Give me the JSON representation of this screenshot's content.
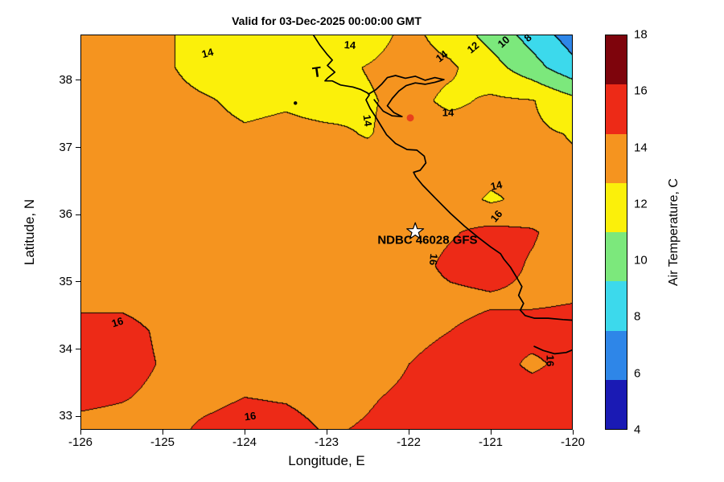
{
  "station": {
    "label": "NDBC 46028 GFS",
    "marker": "white-star",
    "lon": -121.92,
    "lat": 35.75
  },
  "colorbar": {
    "label": "Air Temperature, C",
    "min": 4,
    "max": 18,
    "ticks": [
      18,
      16,
      14,
      12,
      10,
      8,
      6,
      4
    ],
    "band_colors_top_to_bottom": [
      "#7E040C",
      "#ED2A17",
      "#F5941F",
      "#FBF00A",
      "#7CE87C",
      "#3CD9EC",
      "#2E86E8",
      "#1A1AB4"
    ]
  },
  "chart_data": {
    "type": "heatmap",
    "title": "Valid for 03-Dec-2025 00:00:00 GMT",
    "xlabel": "Longitude, E",
    "ylabel": "Latitude, N",
    "units": "C",
    "xlim": [
      -126,
      -120
    ],
    "ylim": [
      32.8,
      38.68
    ],
    "xticks": [
      -126,
      -125,
      -124,
      -123,
      -122,
      -121,
      -120
    ],
    "yticks": [
      33,
      34,
      35,
      36,
      37,
      38
    ],
    "contour_levels": [
      8,
      10,
      12,
      14,
      16
    ],
    "band_colors": [
      {
        "max": 6,
        "color": "#1A1AB4"
      },
      {
        "max": 8,
        "color": "#2E86E8"
      },
      {
        "max": 10,
        "color": "#3CD9EC"
      },
      {
        "max": 12,
        "color": "#7CE87C"
      },
      {
        "max": 14,
        "color": "#FBF00A"
      },
      {
        "max": 16,
        "color": "#F5941F"
      },
      {
        "max": 999,
        "color": "#ED2A17"
      }
    ],
    "grid_lons": [
      -126,
      -125.5,
      -125,
      -124.5,
      -124,
      -123.5,
      -123,
      -122.5,
      -122,
      -121.5,
      -121,
      -120.5,
      -120
    ],
    "grid_lats": [
      38.68,
      38.19,
      37.7,
      37.21,
      36.72,
      36.23,
      35.74,
      35.25,
      34.76,
      34.27,
      33.78,
      33.29,
      32.8
    ],
    "temps": [
      [
        14.8,
        14.6,
        14.4,
        13.0,
        12.8,
        13.0,
        12.9,
        13.2,
        14.5,
        13.2,
        11.3,
        9.2,
        7.0
      ],
      [
        14.9,
        14.7,
        14.3,
        13.3,
        13.0,
        13.2,
        13.4,
        14.1,
        14.7,
        14.3,
        12.8,
        10.8,
        8.6
      ],
      [
        15.0,
        14.9,
        14.6,
        14.2,
        13.6,
        13.8,
        13.4,
        13.8,
        14.6,
        13.6,
        14.3,
        14.1,
        12.6
      ],
      [
        15.1,
        15.0,
        14.8,
        14.5,
        14.2,
        14.4,
        14.3,
        13.9,
        14.7,
        14.9,
        14.6,
        14.3,
        13.9
      ],
      [
        15.2,
        15.1,
        15.0,
        14.8,
        14.6,
        14.5,
        14.4,
        14.6,
        14.9,
        15.1,
        14.8,
        14.6,
        14.2
      ],
      [
        15.2,
        15.2,
        15.1,
        15.0,
        14.9,
        14.8,
        14.8,
        14.9,
        15.0,
        15.1,
        13.7,
        14.6,
        14.6
      ],
      [
        15.3,
        15.3,
        15.2,
        15.1,
        15.0,
        15.0,
        15.0,
        15.1,
        15.2,
        15.8,
        16.6,
        16.2,
        15.0
      ],
      [
        15.3,
        15.4,
        15.3,
        15.2,
        15.1,
        15.0,
        15.0,
        15.1,
        15.3,
        16.4,
        16.8,
        15.8,
        15.2
      ],
      [
        15.6,
        15.7,
        15.5,
        15.3,
        15.2,
        15.1,
        15.1,
        15.2,
        15.4,
        15.6,
        15.8,
        15.7,
        15.9
      ],
      [
        16.5,
        16.4,
        15.8,
        15.4,
        15.2,
        15.1,
        15.1,
        15.3,
        15.6,
        16.0,
        16.4,
        16.6,
        16.6
      ],
      [
        16.8,
        16.5,
        15.9,
        15.5,
        15.4,
        15.3,
        15.3,
        15.5,
        16.0,
        16.5,
        16.7,
        15.7,
        16.5
      ],
      [
        16.3,
        16.1,
        15.7,
        15.7,
        16.0,
        15.9,
        15.6,
        15.9,
        16.2,
        16.5,
        16.7,
        16.8,
        16.8
      ],
      [
        15.6,
        15.5,
        15.6,
        16.2,
        16.5,
        16.4,
        15.9,
        16.1,
        16.4,
        16.7,
        16.8,
        16.9,
        16.9
      ]
    ],
    "contour_labels": [
      {
        "text": "14",
        "lon": -124.45,
        "lat": 38.4,
        "rot": -15
      },
      {
        "text": "14",
        "lon": -122.72,
        "lat": 38.53,
        "rot": 4
      },
      {
        "text": "14",
        "lon": -121.6,
        "lat": 38.36,
        "rot": -38
      },
      {
        "text": "12",
        "lon": -121.22,
        "lat": 38.49,
        "rot": -40
      },
      {
        "text": "10",
        "lon": -120.84,
        "lat": 38.57,
        "rot": -42
      },
      {
        "text": "8",
        "lon": -120.55,
        "lat": 38.63,
        "rot": -42
      },
      {
        "text": "14",
        "lon": -122.5,
        "lat": 37.4,
        "rot": 82
      },
      {
        "text": "14",
        "lon": -121.52,
        "lat": 37.52,
        "rot": 0
      },
      {
        "text": "14",
        "lon": -120.93,
        "lat": 36.43,
        "rot": -12
      },
      {
        "text": "16",
        "lon": -120.93,
        "lat": 35.98,
        "rot": -50
      },
      {
        "text": "16",
        "lon": -121.7,
        "lat": 35.33,
        "rot": 95
      },
      {
        "text": "16",
        "lon": -125.55,
        "lat": 34.4,
        "rot": -18
      },
      {
        "text": "16",
        "lon": -123.93,
        "lat": 33.0,
        "rot": -8
      },
      {
        "text": "16",
        "lon": -120.27,
        "lat": 33.83,
        "rot": 90
      }
    ],
    "coastline": [
      [
        [
          -123.17,
          38.69
        ],
        [
          -123.08,
          38.52
        ],
        [
          -122.99,
          38.38
        ],
        [
          -122.93,
          38.3
        ],
        [
          -122.99,
          38.22
        ],
        [
          -122.9,
          38.12
        ],
        [
          -122.99,
          38.03
        ],
        [
          -123.02,
          37.99
        ],
        [
          -122.93,
          37.99
        ],
        [
          -122.83,
          37.93
        ],
        [
          -122.68,
          37.9
        ],
        [
          -122.58,
          37.86
        ],
        [
          -122.5,
          37.81
        ],
        [
          -122.48,
          37.78
        ],
        [
          -122.52,
          37.71
        ],
        [
          -122.47,
          37.58
        ],
        [
          -122.4,
          37.45
        ],
        [
          -122.34,
          37.33
        ],
        [
          -122.27,
          37.19
        ],
        [
          -122.16,
          37.06
        ],
        [
          -122.02,
          36.97
        ],
        [
          -121.9,
          36.96
        ],
        [
          -121.81,
          36.87
        ],
        [
          -121.79,
          36.77
        ],
        [
          -121.86,
          36.66
        ],
        [
          -121.94,
          36.63
        ],
        [
          -121.91,
          36.56
        ],
        [
          -121.83,
          36.44
        ],
        [
          -121.67,
          36.24
        ],
        [
          -121.49,
          36.02
        ],
        [
          -121.32,
          35.83
        ],
        [
          -121.16,
          35.67
        ],
        [
          -121.0,
          35.52
        ],
        [
          -120.88,
          35.42
        ],
        [
          -120.84,
          35.34
        ],
        [
          -120.76,
          35.22
        ],
        [
          -120.69,
          35.08
        ],
        [
          -120.62,
          34.93
        ],
        [
          -120.66,
          34.8
        ],
        [
          -120.6,
          34.68
        ],
        [
          -120.64,
          34.58
        ],
        [
          -120.58,
          34.5
        ],
        [
          -120.47,
          34.46
        ],
        [
          -120.3,
          34.46
        ],
        [
          -120.12,
          34.44
        ],
        [
          -120.0,
          34.43
        ]
      ],
      [
        [
          -122.48,
          37.8
        ],
        [
          -122.4,
          37.86
        ],
        [
          -122.33,
          37.94
        ],
        [
          -122.26,
          38.04
        ],
        [
          -122.16,
          38.07
        ],
        [
          -122.04,
          38.03
        ],
        [
          -121.92,
          38.06
        ],
        [
          -121.8,
          38.0
        ],
        [
          -121.68,
          38.04
        ],
        [
          -121.57,
          38.01
        ],
        [
          -121.68,
          37.97
        ],
        [
          -121.8,
          37.94
        ],
        [
          -121.92,
          37.96
        ],
        [
          -122.03,
          37.92
        ],
        [
          -122.12,
          37.84
        ],
        [
          -122.2,
          37.73
        ],
        [
          -122.26,
          37.62
        ],
        [
          -122.18,
          37.52
        ],
        [
          -122.08,
          37.46
        ],
        [
          -122.2,
          37.47
        ],
        [
          -122.31,
          37.54
        ],
        [
          -122.37,
          37.63
        ],
        [
          -122.42,
          37.71
        ]
      ],
      [
        [
          -120.47,
          34.04
        ],
        [
          -120.36,
          33.98
        ],
        [
          -120.22,
          33.93
        ],
        [
          -120.08,
          33.95
        ],
        [
          -120.0,
          33.99
        ]
      ]
    ],
    "markers": [
      {
        "kind": "red-dot",
        "lon": -121.98,
        "lat": 37.44
      },
      {
        "kind": "black-dot",
        "lon": -123.38,
        "lat": 37.66
      },
      {
        "kind": "t-flag",
        "lon": -123.11,
        "lat": 38.05
      }
    ]
  }
}
